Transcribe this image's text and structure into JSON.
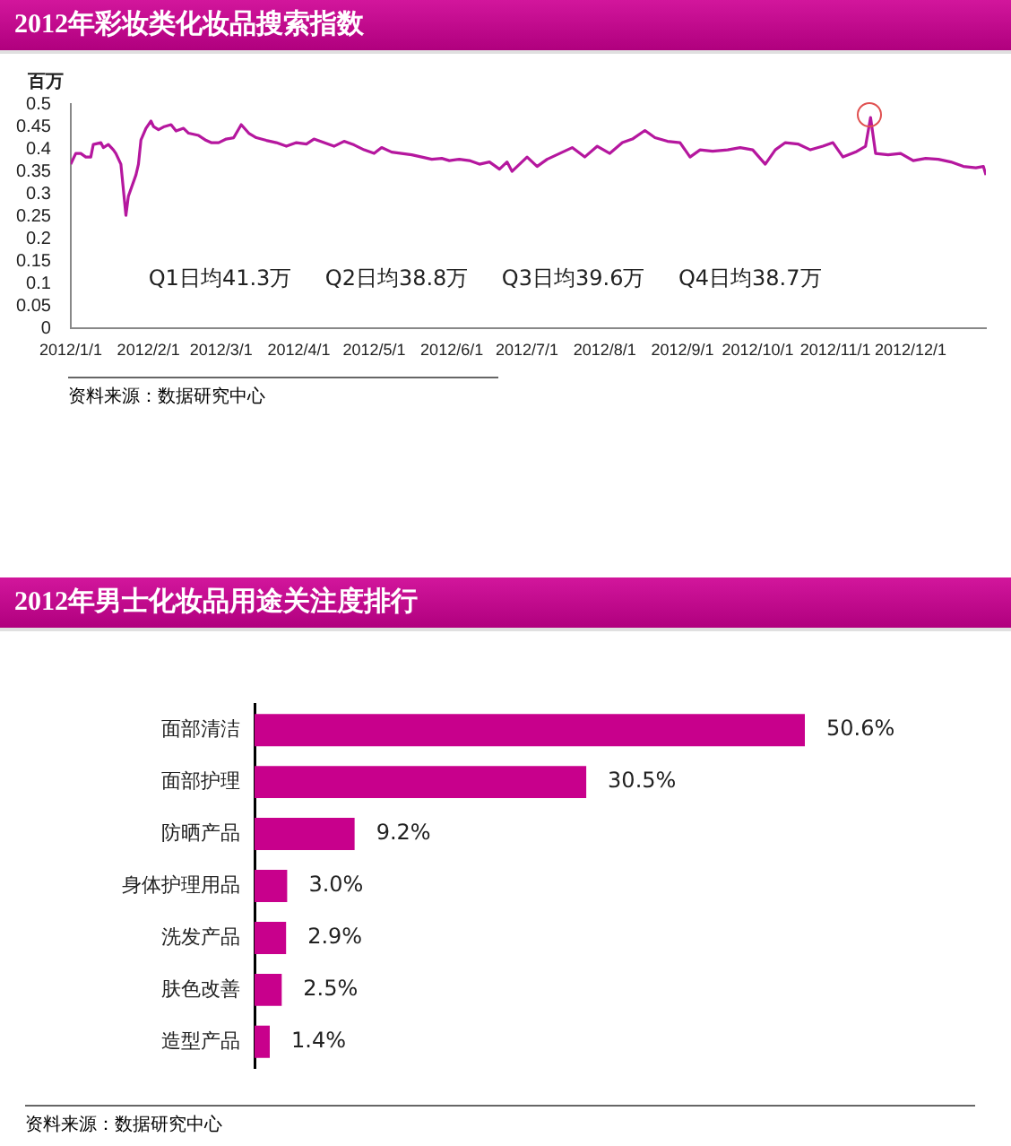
{
  "chart_data": [
    {
      "type": "line",
      "title": "2012年彩妆类化妆品搜索指数",
      "ylabel": "百万",
      "annotations": [
        "Q1日均41.3万",
        "Q2日均38.8万",
        "Q3日均39.6万",
        "Q4日均38.7万",
        "资料来源：数据研究中心"
      ],
      "xlim": [
        "2012-01-01",
        "2012-12-31"
      ],
      "xticks": [
        {
          "value": "2012-01-01",
          "label": "2012/1/1"
        },
        {
          "value": "2012-02-01",
          "label": "2012/2/1"
        },
        {
          "value": "2012-03-01",
          "label": "2012/3/1"
        },
        {
          "value": "2012-04-01",
          "label": "2012/4/1"
        },
        {
          "value": "2012-05-01",
          "label": "2012/5/1"
        },
        {
          "value": "2012-06-01",
          "label": "2012/6/1"
        },
        {
          "value": "2012-07-01",
          "label": "2012/7/1"
        },
        {
          "value": "2012-08-01",
          "label": "2012/8/1"
        },
        {
          "value": "2012-09-01",
          "label": "2012/9/1"
        },
        {
          "value": "2012-10-01",
          "label": "2012/10/1"
        },
        {
          "value": "2012-11-01",
          "label": "2012/11/1"
        },
        {
          "value": "2012-12-01",
          "label": "2012/12/1"
        }
      ],
      "ylim": [
        0,
        0.5
      ],
      "yticks": [
        0,
        0.05,
        0.1,
        0.15,
        0.2,
        0.25,
        0.3,
        0.35,
        0.4,
        0.45,
        0.5
      ],
      "grid": false,
      "legend": false,
      "marker": "none",
      "series": [
        {
          "color": "#b5179e",
          "x": [
            "2012-01-01",
            "2012-01-03",
            "2012-01-05",
            "2012-01-07",
            "2012-01-09",
            "2012-01-10",
            "2012-01-13",
            "2012-01-14",
            "2012-01-16",
            "2012-01-18",
            "2012-01-19",
            "2012-01-21",
            "2012-01-23",
            "2012-01-24",
            "2012-01-27",
            "2012-01-28",
            "2012-01-29",
            "2012-01-31",
            "2012-02-02",
            "2012-02-03",
            "2012-02-05",
            "2012-02-07",
            "2012-02-10",
            "2012-02-12",
            "2012-02-15",
            "2012-02-17",
            "2012-02-21",
            "2012-02-24",
            "2012-02-26",
            "2012-02-29",
            "2012-03-03",
            "2012-03-06",
            "2012-03-09",
            "2012-03-12",
            "2012-03-15",
            "2012-03-19",
            "2012-03-23",
            "2012-03-27",
            "2012-03-31",
            "2012-04-04",
            "2012-04-07",
            "2012-04-11",
            "2012-04-15",
            "2012-04-19",
            "2012-04-23",
            "2012-04-27",
            "2012-05-01",
            "2012-05-04",
            "2012-05-08",
            "2012-05-12",
            "2012-05-16",
            "2012-05-20",
            "2012-05-24",
            "2012-05-28",
            "2012-05-31",
            "2012-06-04",
            "2012-06-08",
            "2012-06-12",
            "2012-06-16",
            "2012-06-20",
            "2012-06-23",
            "2012-06-25",
            "2012-07-01",
            "2012-07-05",
            "2012-07-09",
            "2012-07-14",
            "2012-07-19",
            "2012-07-24",
            "2012-07-29",
            "2012-08-03",
            "2012-08-08",
            "2012-08-12",
            "2012-08-17",
            "2012-08-21",
            "2012-08-26",
            "2012-08-31",
            "2012-09-04",
            "2012-09-08",
            "2012-09-13",
            "2012-09-19",
            "2012-09-24",
            "2012-09-29",
            "2012-10-04",
            "2012-10-08",
            "2012-10-12",
            "2012-10-17",
            "2012-10-22",
            "2012-10-27",
            "2012-10-31",
            "2012-11-04",
            "2012-11-09",
            "2012-11-13",
            "2012-11-15",
            "2012-11-17",
            "2012-11-22",
            "2012-11-27",
            "2012-12-02",
            "2012-12-07",
            "2012-12-12",
            "2012-12-17",
            "2012-12-22",
            "2012-12-27",
            "2012-12-30",
            "2012-12-31"
          ],
          "values": [
            0.366,
            0.39,
            0.39,
            0.382,
            0.382,
            0.41,
            0.414,
            0.403,
            0.41,
            0.398,
            0.39,
            0.366,
            0.252,
            0.295,
            0.342,
            0.366,
            0.42,
            0.446,
            0.462,
            0.45,
            0.443,
            0.449,
            0.454,
            0.44,
            0.446,
            0.435,
            0.43,
            0.419,
            0.414,
            0.414,
            0.422,
            0.425,
            0.454,
            0.435,
            0.425,
            0.419,
            0.414,
            0.406,
            0.414,
            0.411,
            0.422,
            0.414,
            0.406,
            0.417,
            0.409,
            0.398,
            0.39,
            0.403,
            0.393,
            0.39,
            0.387,
            0.382,
            0.377,
            0.379,
            0.374,
            0.377,
            0.374,
            0.366,
            0.371,
            0.355,
            0.371,
            0.35,
            0.382,
            0.361,
            0.377,
            0.39,
            0.403,
            0.382,
            0.406,
            0.39,
            0.414,
            0.422,
            0.441,
            0.425,
            0.417,
            0.414,
            0.382,
            0.398,
            0.395,
            0.398,
            0.403,
            0.398,
            0.366,
            0.398,
            0.414,
            0.411,
            0.398,
            0.406,
            0.414,
            0.382,
            0.393,
            0.406,
            0.47,
            0.39,
            0.387,
            0.39,
            0.374,
            0.379,
            0.377,
            0.371,
            0.361,
            0.358,
            0.361,
            0.342
          ]
        }
      ]
    },
    {
      "type": "bar",
      "orientation": "horizontal",
      "title": "2012年男士化妆品用途关注度排行",
      "annotations": [
        "资料来源：数据研究中心"
      ],
      "categories": [
        "面部清洁",
        "面部护理",
        "防晒产品",
        "身体护理用品",
        "洗发产品",
        "肤色改善",
        "造型产品"
      ],
      "values": [
        50.6,
        30.5,
        9.2,
        3.0,
        2.9,
        2.5,
        1.4
      ],
      "value_labels": [
        "50.6%",
        "30.5%",
        "9.2%",
        "3.0%",
        "2.9%",
        "2.5%",
        "1.4%"
      ],
      "color": "#c8008c",
      "legend": false,
      "grid": false
    }
  ]
}
